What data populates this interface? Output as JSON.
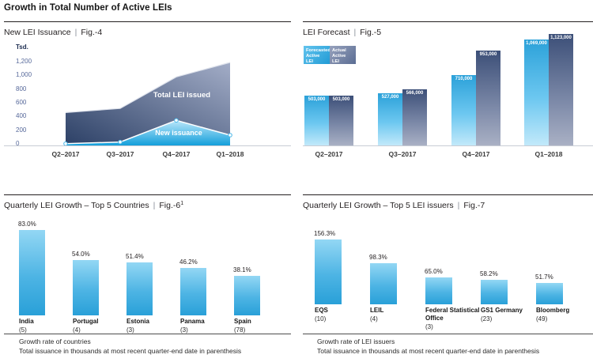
{
  "header": {
    "title": "Growth in Total Number of Active LEIs",
    "separator": "|"
  },
  "colors": {
    "accent_blue": "#29a3dc",
    "light_blue_gradient_top": "#93d7f4",
    "dark_slate_blue": "#3c4f78",
    "slate_gradient_light": "#a9b0c4",
    "tick_label_blue": "#56689a",
    "text_dark": "#231f20",
    "axis_line_gray": "#c8ccd4"
  },
  "chart_data": [
    {
      "id": "fig4",
      "type": "area",
      "title": "New LEI Issuance",
      "fig_label": "Fig.-4",
      "unit_label": "Tsd.",
      "x": [
        "Q2–2017",
        "Q3–2017",
        "Q4–2017",
        "Q1–2018"
      ],
      "series": [
        {
          "name": "Total LEI issued",
          "values": [
            480,
            540,
            1000,
            1210
          ]
        },
        {
          "name": "New issuance",
          "values": [
            25,
            50,
            365,
            150
          ]
        }
      ],
      "ytick_labels": [
        "1,200",
        "1,000",
        "800",
        "600",
        "400",
        "200",
        "0"
      ],
      "ytick_values": [
        1200,
        1000,
        800,
        600,
        400,
        200,
        0
      ],
      "ylim": [
        0,
        1300
      ],
      "grid": false,
      "note_on_values": "series values estimated from axis (thousands)"
    },
    {
      "id": "fig5",
      "type": "bar",
      "title": "LEI Forecast",
      "fig_label": "Fig.-5",
      "categories": [
        "Q2–2017",
        "Q3–2017",
        "Q4–2017",
        "Q1–2018"
      ],
      "legend": [
        "Forecasted Active LEI",
        "Actual Active LEI"
      ],
      "legend_position": "top-left",
      "series": [
        {
          "name": "Forecasted Active LEI",
          "values": [
            503000,
            527000,
            710000,
            1069000
          ]
        },
        {
          "name": "Actual Active LEI",
          "values": [
            503000,
            566000,
            953000,
            1123000
          ]
        }
      ],
      "value_labels": [
        [
          "503,000",
          "527,000",
          "710,000",
          "1,069,000"
        ],
        [
          "503,000",
          "566,000",
          "953,000",
          "1,123,000"
        ]
      ],
      "ylim": [
        0,
        1123000
      ],
      "grid": false
    },
    {
      "id": "fig6",
      "type": "bar",
      "title": "Quarterly LEI Growth – Top 5 Countries",
      "fig_label": "Fig.-6",
      "fig_superscript": "1",
      "categories": [
        "India",
        "Portugal",
        "Estonia",
        "Panama",
        "Spain"
      ],
      "counts": [
        "(5)",
        "(4)",
        "(3)",
        "(3)",
        "(78)"
      ],
      "values": [
        83.0,
        54.0,
        51.4,
        46.2,
        38.1
      ],
      "value_labels": [
        "83.0%",
        "54.0%",
        "51.4%",
        "46.2%",
        "38.1%"
      ],
      "ylim": [
        0,
        90
      ],
      "grid": false,
      "footnote": [
        "Growth rate of countries",
        "Total issuance in thousands at most recent quarter-end date in parenthesis"
      ]
    },
    {
      "id": "fig7",
      "type": "bar",
      "title": "Quarterly LEI Growth – Top 5 LEI issuers",
      "fig_label": "Fig.-7",
      "fig_superscript": "",
      "categories": [
        "EQS",
        "LEIL",
        "Federal Statistical Office",
        "GS1 Germany",
        "Bloomberg"
      ],
      "counts": [
        "(10)",
        "(4)",
        "(3)",
        "(23)",
        "(49)"
      ],
      "values": [
        156.3,
        98.3,
        65.0,
        58.2,
        51.7
      ],
      "value_labels": [
        "156.3%",
        "98.3%",
        "65.0%",
        "58.2%",
        "51.7%"
      ],
      "ylim": [
        0,
        170
      ],
      "grid": false,
      "footnote": [
        "Growth rate of LEI issuers",
        "Total issuance in thousands at most recent quarter-end date in parenthesis"
      ]
    }
  ]
}
